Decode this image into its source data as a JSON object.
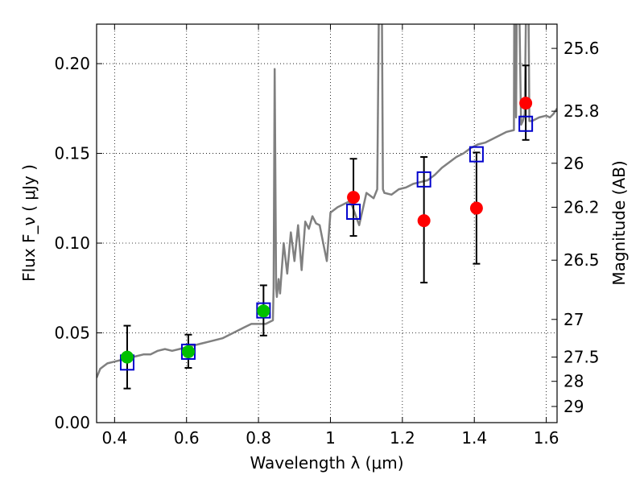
{
  "chart_data": {
    "type": "scatter",
    "xlabel": "Wavelength  λ (μm)",
    "ylabel": "Flux  F_ν  ( μJy )",
    "y2label": "Magnitude (AB)",
    "xlim": [
      0.35,
      1.63
    ],
    "ylim": [
      0.0,
      0.222
    ],
    "grid": true,
    "colors": {
      "spectrum": "#808080",
      "green": "#00c000",
      "red": "#ff0000",
      "square": "#0000cc",
      "errorbar": "#000000"
    },
    "x_ticks": [
      {
        "value": 0.4,
        "label": "0.4"
      },
      {
        "value": 0.6,
        "label": "0.6"
      },
      {
        "value": 0.8,
        "label": "0.8"
      },
      {
        "value": 1.0,
        "label": "1"
      },
      {
        "value": 1.2,
        "label": "1.2"
      },
      {
        "value": 1.4,
        "label": "1.4"
      },
      {
        "value": 1.6,
        "label": "1.6"
      }
    ],
    "y_ticks": [
      {
        "value": 0.0,
        "label": "0.00"
      },
      {
        "value": 0.05,
        "label": "0.05"
      },
      {
        "value": 0.1,
        "label": "0.10"
      },
      {
        "value": 0.15,
        "label": "0.15"
      },
      {
        "value": 0.2,
        "label": "0.20"
      }
    ],
    "y2_ticks": [
      {
        "flux": 0.2085,
        "label": "25.6"
      },
      {
        "flux": 0.1735,
        "label": "25.8"
      },
      {
        "flux": 0.1445,
        "label": "26"
      },
      {
        "flux": 0.12,
        "label": "26.2"
      },
      {
        "flux": 0.0905,
        "label": "26.5"
      },
      {
        "flux": 0.0575,
        "label": "27"
      },
      {
        "flux": 0.0365,
        "label": "27.5"
      },
      {
        "flux": 0.023,
        "label": "28"
      },
      {
        "flux": 0.009,
        "label": "29"
      }
    ],
    "spectrum": {
      "x": [
        0.35,
        0.36,
        0.38,
        0.4,
        0.42,
        0.44,
        0.46,
        0.48,
        0.5,
        0.52,
        0.54,
        0.56,
        0.58,
        0.6,
        0.62,
        0.64,
        0.66,
        0.68,
        0.7,
        0.72,
        0.74,
        0.76,
        0.78,
        0.8,
        0.82,
        0.84,
        0.842,
        0.845,
        0.849,
        0.851,
        0.856,
        0.86,
        0.87,
        0.88,
        0.89,
        0.9,
        0.91,
        0.92,
        0.93,
        0.94,
        0.95,
        0.96,
        0.97,
        0.98,
        0.99,
        1.0,
        1.02,
        1.04,
        1.05,
        1.06,
        1.08,
        1.1,
        1.12,
        1.13,
        1.138,
        1.141,
        1.146,
        1.15,
        1.17,
        1.19,
        1.21,
        1.23,
        1.25,
        1.27,
        1.29,
        1.31,
        1.33,
        1.35,
        1.37,
        1.39,
        1.41,
        1.43,
        1.45,
        1.47,
        1.49,
        1.51,
        1.512,
        1.516,
        1.52,
        1.53,
        1.535,
        1.54,
        1.548,
        1.553,
        1.56,
        1.58,
        1.6,
        1.61,
        1.62,
        1.63
      ],
      "y": [
        0.025,
        0.03,
        0.033,
        0.034,
        0.035,
        0.036,
        0.037,
        0.038,
        0.038,
        0.04,
        0.041,
        0.04,
        0.041,
        0.042,
        0.043,
        0.044,
        0.045,
        0.046,
        0.047,
        0.049,
        0.051,
        0.053,
        0.055,
        0.055,
        0.055,
        0.057,
        0.075,
        0.197,
        0.075,
        0.07,
        0.08,
        0.072,
        0.1,
        0.083,
        0.106,
        0.09,
        0.11,
        0.085,
        0.112,
        0.108,
        0.115,
        0.111,
        0.11,
        0.1,
        0.09,
        0.117,
        0.12,
        0.122,
        0.123,
        0.121,
        0.11,
        0.128,
        0.125,
        0.13,
        0.3,
        0.3,
        0.13,
        0.128,
        0.127,
        0.13,
        0.131,
        0.133,
        0.134,
        0.135,
        0.138,
        0.142,
        0.145,
        0.148,
        0.15,
        0.153,
        0.155,
        0.156,
        0.158,
        0.16,
        0.162,
        0.163,
        0.3,
        0.17,
        0.3,
        0.166,
        0.168,
        0.172,
        0.3,
        0.168,
        0.168,
        0.17,
        0.171,
        0.17,
        0.172,
        0.175
      ]
    },
    "squares": [
      {
        "x": 0.435,
        "y": 0.0335
      },
      {
        "x": 0.605,
        "y": 0.0395
      },
      {
        "x": 0.814,
        "y": 0.0625
      },
      {
        "x": 1.064,
        "y": 0.1175
      },
      {
        "x": 1.26,
        "y": 0.1355
      },
      {
        "x": 1.406,
        "y": 0.1495
      },
      {
        "x": 1.543,
        "y": 0.1665
      }
    ],
    "points": [
      {
        "x": 0.435,
        "y": 0.0365,
        "yerr_low": 0.0175,
        "yerr_high": 0.0175,
        "color": "green"
      },
      {
        "x": 0.605,
        "y": 0.0395,
        "yerr_low": 0.009,
        "yerr_high": 0.0095,
        "color": "green"
      },
      {
        "x": 0.814,
        "y": 0.0622,
        "yerr_low": 0.0137,
        "yerr_high": 0.0143,
        "color": "green"
      },
      {
        "x": 1.064,
        "y": 0.1255,
        "yerr_low": 0.0215,
        "yerr_high": 0.0215,
        "color": "red"
      },
      {
        "x": 1.26,
        "y": 0.1125,
        "yerr_low": 0.0345,
        "yerr_high": 0.0355,
        "color": "red"
      },
      {
        "x": 1.406,
        "y": 0.1195,
        "yerr_low": 0.031,
        "yerr_high": 0.031,
        "color": "red"
      },
      {
        "x": 1.543,
        "y": 0.178,
        "yerr_low": 0.0205,
        "yerr_high": 0.021,
        "color": "red"
      }
    ]
  }
}
